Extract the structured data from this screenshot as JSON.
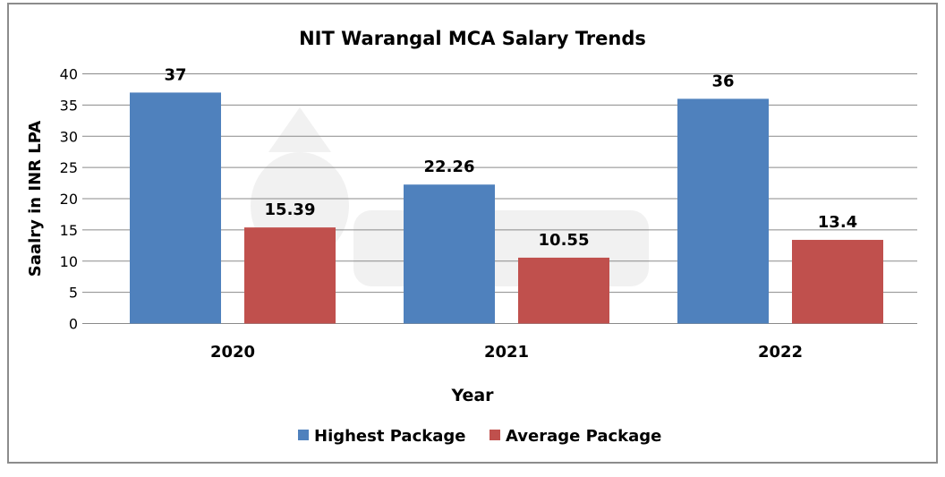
{
  "chart_data": {
    "type": "bar",
    "title": "NIT Warangal MCA Salary Trends",
    "xlabel": "Year",
    "ylabel": "Saalry in INR LPA",
    "categories": [
      "2020",
      "2021",
      "2022"
    ],
    "series": [
      {
        "name": "Highest Package",
        "values": [
          37,
          22.26,
          36
        ],
        "labels": [
          "37",
          "22.26",
          "36"
        ],
        "color": "#4f81bd"
      },
      {
        "name": "Average Package",
        "values": [
          15.39,
          10.55,
          13.4
        ],
        "labels": [
          "15.39",
          "10.55",
          "13.4"
        ],
        "color": "#c0504d"
      }
    ],
    "ylim": [
      0,
      40
    ],
    "yticks": [
      "0",
      "5",
      "10",
      "15",
      "20",
      "25",
      "30",
      "35",
      "40"
    ],
    "grid": true,
    "legend": "bottom",
    "watermark": "shiksha"
  }
}
